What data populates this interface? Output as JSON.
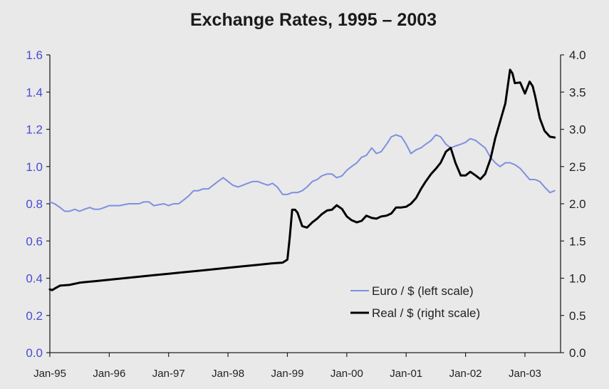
{
  "chart_data": {
    "type": "line",
    "title": "Exchange Rates, 1995 – 2003",
    "xlabel": "",
    "ylabel_left": "",
    "ylabel_right": "",
    "x_tick_labels": [
      "Jan-95",
      "Jan-96",
      "Jan-97",
      "Jan-98",
      "Jan-99",
      "Jan-00",
      "Jan-01",
      "Jan-02",
      "Jan-03"
    ],
    "x_range": [
      1995.0,
      2003.6
    ],
    "y_left": {
      "ticks": [
        "0.0",
        "0.2",
        "0.4",
        "0.6",
        "0.8",
        "1.0",
        "1.2",
        "1.4",
        "1.6"
      ],
      "range": [
        0,
        1.6
      ]
    },
    "y_right": {
      "ticks": [
        "0.0",
        "0.5",
        "1.0",
        "1.5",
        "2.0",
        "2.5",
        "3.0",
        "3.5",
        "4.0"
      ],
      "range": [
        0,
        4.0
      ]
    },
    "legend_position": "bottom-right",
    "grid": false,
    "series": [
      {
        "name": "Euro / $ (left scale)",
        "axis": "left",
        "color": "#7f8fe0",
        "points": [
          [
            1995.0,
            0.81
          ],
          [
            1995.08,
            0.8
          ],
          [
            1995.17,
            0.78
          ],
          [
            1995.25,
            0.76
          ],
          [
            1995.33,
            0.76
          ],
          [
            1995.42,
            0.77
          ],
          [
            1995.5,
            0.76
          ],
          [
            1995.58,
            0.77
          ],
          [
            1995.67,
            0.78
          ],
          [
            1995.75,
            0.77
          ],
          [
            1995.83,
            0.77
          ],
          [
            1995.92,
            0.78
          ],
          [
            1996.0,
            0.79
          ],
          [
            1996.17,
            0.79
          ],
          [
            1996.33,
            0.8
          ],
          [
            1996.5,
            0.8
          ],
          [
            1996.58,
            0.81
          ],
          [
            1996.67,
            0.81
          ],
          [
            1996.75,
            0.79
          ],
          [
            1996.92,
            0.8
          ],
          [
            1997.0,
            0.79
          ],
          [
            1997.08,
            0.8
          ],
          [
            1997.17,
            0.8
          ],
          [
            1997.25,
            0.82
          ],
          [
            1997.33,
            0.84
          ],
          [
            1997.42,
            0.87
          ],
          [
            1997.5,
            0.87
          ],
          [
            1997.58,
            0.88
          ],
          [
            1997.67,
            0.88
          ],
          [
            1997.75,
            0.9
          ],
          [
            1997.83,
            0.92
          ],
          [
            1997.92,
            0.94
          ],
          [
            1998.0,
            0.92
          ],
          [
            1998.08,
            0.9
          ],
          [
            1998.17,
            0.89
          ],
          [
            1998.25,
            0.9
          ],
          [
            1998.33,
            0.91
          ],
          [
            1998.42,
            0.92
          ],
          [
            1998.5,
            0.92
          ],
          [
            1998.58,
            0.91
          ],
          [
            1998.67,
            0.9
          ],
          [
            1998.75,
            0.91
          ],
          [
            1998.83,
            0.89
          ],
          [
            1998.92,
            0.85
          ],
          [
            1999.0,
            0.85
          ],
          [
            1999.08,
            0.86
          ],
          [
            1999.17,
            0.86
          ],
          [
            1999.25,
            0.87
          ],
          [
            1999.33,
            0.89
          ],
          [
            1999.42,
            0.92
          ],
          [
            1999.5,
            0.93
          ],
          [
            1999.58,
            0.95
          ],
          [
            1999.67,
            0.96
          ],
          [
            1999.75,
            0.96
          ],
          [
            1999.83,
            0.94
          ],
          [
            1999.92,
            0.95
          ],
          [
            2000.0,
            0.98
          ],
          [
            2000.08,
            1.0
          ],
          [
            2000.17,
            1.02
          ],
          [
            2000.25,
            1.05
          ],
          [
            2000.33,
            1.06
          ],
          [
            2000.42,
            1.1
          ],
          [
            2000.5,
            1.07
          ],
          [
            2000.58,
            1.08
          ],
          [
            2000.67,
            1.12
          ],
          [
            2000.75,
            1.16
          ],
          [
            2000.83,
            1.17
          ],
          [
            2000.92,
            1.16
          ],
          [
            2001.0,
            1.12
          ],
          [
            2001.08,
            1.07
          ],
          [
            2001.17,
            1.09
          ],
          [
            2001.25,
            1.1
          ],
          [
            2001.33,
            1.12
          ],
          [
            2001.42,
            1.14
          ],
          [
            2001.5,
            1.17
          ],
          [
            2001.58,
            1.16
          ],
          [
            2001.67,
            1.12
          ],
          [
            2001.75,
            1.1
          ],
          [
            2001.83,
            1.11
          ],
          [
            2001.92,
            1.12
          ],
          [
            2002.0,
            1.13
          ],
          [
            2002.08,
            1.15
          ],
          [
            2002.17,
            1.14
          ],
          [
            2002.25,
            1.12
          ],
          [
            2002.33,
            1.1
          ],
          [
            2002.42,
            1.05
          ],
          [
            2002.5,
            1.02
          ],
          [
            2002.58,
            1.0
          ],
          [
            2002.67,
            1.02
          ],
          [
            2002.75,
            1.02
          ],
          [
            2002.83,
            1.01
          ],
          [
            2002.92,
            0.99
          ],
          [
            2003.0,
            0.96
          ],
          [
            2003.08,
            0.93
          ],
          [
            2003.17,
            0.93
          ],
          [
            2003.25,
            0.92
          ],
          [
            2003.33,
            0.89
          ],
          [
            2003.42,
            0.86
          ],
          [
            2003.5,
            0.87
          ]
        ]
      },
      {
        "name": "Real / $ (right scale)",
        "axis": "right",
        "color": "#000000",
        "points": [
          [
            1995.0,
            0.85
          ],
          [
            1995.04,
            0.84
          ],
          [
            1995.08,
            0.86
          ],
          [
            1995.17,
            0.9
          ],
          [
            1995.33,
            0.91
          ],
          [
            1995.5,
            0.94
          ],
          [
            1995.75,
            0.96
          ],
          [
            1996.0,
            0.98
          ],
          [
            1996.25,
            1.0
          ],
          [
            1996.5,
            1.02
          ],
          [
            1996.75,
            1.04
          ],
          [
            1997.0,
            1.06
          ],
          [
            1997.25,
            1.08
          ],
          [
            1997.5,
            1.1
          ],
          [
            1997.75,
            1.12
          ],
          [
            1998.0,
            1.14
          ],
          [
            1998.25,
            1.16
          ],
          [
            1998.5,
            1.18
          ],
          [
            1998.75,
            1.2
          ],
          [
            1998.92,
            1.21
          ],
          [
            1999.0,
            1.25
          ],
          [
            1999.04,
            1.55
          ],
          [
            1999.08,
            1.92
          ],
          [
            1999.13,
            1.92
          ],
          [
            1999.17,
            1.88
          ],
          [
            1999.25,
            1.7
          ],
          [
            1999.33,
            1.68
          ],
          [
            1999.42,
            1.75
          ],
          [
            1999.5,
            1.8
          ],
          [
            1999.58,
            1.86
          ],
          [
            1999.67,
            1.91
          ],
          [
            1999.75,
            1.92
          ],
          [
            1999.83,
            1.98
          ],
          [
            1999.92,
            1.93
          ],
          [
            2000.0,
            1.83
          ],
          [
            2000.08,
            1.78
          ],
          [
            2000.17,
            1.75
          ],
          [
            2000.25,
            1.77
          ],
          [
            2000.33,
            1.84
          ],
          [
            2000.42,
            1.81
          ],
          [
            2000.5,
            1.8
          ],
          [
            2000.58,
            1.83
          ],
          [
            2000.67,
            1.84
          ],
          [
            2000.75,
            1.87
          ],
          [
            2000.83,
            1.95
          ],
          [
            2000.92,
            1.95
          ],
          [
            2001.0,
            1.96
          ],
          [
            2001.08,
            2.0
          ],
          [
            2001.17,
            2.08
          ],
          [
            2001.25,
            2.2
          ],
          [
            2001.33,
            2.3
          ],
          [
            2001.42,
            2.4
          ],
          [
            2001.5,
            2.47
          ],
          [
            2001.58,
            2.55
          ],
          [
            2001.67,
            2.7
          ],
          [
            2001.75,
            2.75
          ],
          [
            2001.83,
            2.55
          ],
          [
            2001.92,
            2.38
          ],
          [
            2002.0,
            2.38
          ],
          [
            2002.08,
            2.43
          ],
          [
            2002.17,
            2.38
          ],
          [
            2002.25,
            2.33
          ],
          [
            2002.33,
            2.4
          ],
          [
            2002.42,
            2.6
          ],
          [
            2002.5,
            2.88
          ],
          [
            2002.58,
            3.1
          ],
          [
            2002.67,
            3.35
          ],
          [
            2002.75,
            3.8
          ],
          [
            2002.79,
            3.75
          ],
          [
            2002.83,
            3.62
          ],
          [
            2002.92,
            3.63
          ],
          [
            2003.0,
            3.48
          ],
          [
            2003.08,
            3.64
          ],
          [
            2003.13,
            3.58
          ],
          [
            2003.17,
            3.45
          ],
          [
            2003.25,
            3.15
          ],
          [
            2003.33,
            2.98
          ],
          [
            2003.42,
            2.9
          ],
          [
            2003.5,
            2.89
          ]
        ]
      }
    ]
  }
}
